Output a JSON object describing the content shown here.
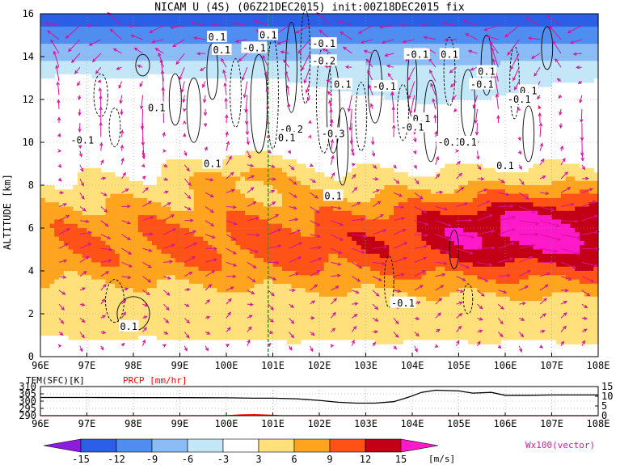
{
  "title": "NICAM U (4S) (06Z21DEC2015) init:00Z18DEC2015 fix",
  "chart_data": {
    "type": "heatmap",
    "title": "NICAM U (4S) (06Z21DEC2015) init:00Z18DEC2015 fix",
    "ylabel": "ALTITUDE [km]",
    "xlabel": "",
    "x_ticks": [
      "96E",
      "97E",
      "98E",
      "99E",
      "100E",
      "101E",
      "102E",
      "103E",
      "104E",
      "105E",
      "106E",
      "107E",
      "108E"
    ],
    "x_range": [
      96,
      108
    ],
    "y_ticks": [
      "0",
      "2",
      "4",
      "6",
      "8",
      "10",
      "12",
      "14",
      "16"
    ],
    "y_range": [
      0,
      16
    ],
    "reference_longitude": 100.9,
    "colorbar": {
      "unit": "[m/s]",
      "levels": [
        "-15",
        "-12",
        "-9",
        "-6",
        "-3",
        "3",
        "6",
        "9",
        "12",
        "15"
      ],
      "colors": [
        "#8d1ce0",
        "#2a5fe6",
        "#4f8ef0",
        "#8bbcf5",
        "#c3e7f7",
        "#ffffff",
        "#ffe07a",
        "#ffa41e",
        "#ff5216",
        "#c40016",
        "#ff19c8"
      ]
    },
    "vector_label": "Wx100(vector)",
    "contour_labels": [
      {
        "text": "0.1",
        "lon": 99.8,
        "alt": 14.9
      },
      {
        "text": "0.1",
        "lon": 100.9,
        "alt": 15.0
      },
      {
        "text": "-0.1",
        "lon": 100.6,
        "alt": 14.4
      },
      {
        "text": "0.1",
        "lon": 99.9,
        "alt": 14.3
      },
      {
        "text": "-0.1",
        "lon": 102.1,
        "alt": 14.6
      },
      {
        "text": "-0.2",
        "lon": 102.1,
        "alt": 13.8
      },
      {
        "text": "0.1",
        "lon": 102.5,
        "alt": 12.7
      },
      {
        "text": "-0.1",
        "lon": 103.4,
        "alt": 12.6
      },
      {
        "text": "-0.1",
        "lon": 104.1,
        "alt": 14.1
      },
      {
        "text": "0.1",
        "lon": 104.8,
        "alt": 14.1
      },
      {
        "text": "0.1",
        "lon": 105.6,
        "alt": 13.3
      },
      {
        "text": "-0.1",
        "lon": 105.5,
        "alt": 12.7
      },
      {
        "text": "0.1",
        "lon": 106.5,
        "alt": 12.4
      },
      {
        "text": "-0.1",
        "lon": 106.3,
        "alt": 12.0
      },
      {
        "text": "0.1",
        "lon": 98.5,
        "alt": 11.6
      },
      {
        "text": "0.1",
        "lon": 104.2,
        "alt": 11.1
      },
      {
        "text": "-0.1",
        "lon": 104.0,
        "alt": 10.7
      },
      {
        "text": "-0.2",
        "lon": 101.4,
        "alt": 10.6
      },
      {
        "text": "-0.3",
        "lon": 102.3,
        "alt": 10.4
      },
      {
        "text": "0.1",
        "lon": 101.3,
        "alt": 10.2
      },
      {
        "text": "-0.1",
        "lon": 96.9,
        "alt": 10.1
      },
      {
        "text": "-0.1",
        "lon": 104.8,
        "alt": 10.0
      },
      {
        "text": "0.1",
        "lon": 105.2,
        "alt": 10.0
      },
      {
        "text": "0.1",
        "lon": 99.7,
        "alt": 9.0
      },
      {
        "text": "0.1",
        "lon": 106.0,
        "alt": 8.9
      },
      {
        "text": "0.1",
        "lon": 102.3,
        "alt": 7.5
      },
      {
        "text": "-0.1",
        "lon": 103.8,
        "alt": 2.5
      },
      {
        "text": "0.1",
        "lon": 97.9,
        "alt": 1.4
      }
    ],
    "bottom_panel": {
      "tem_label": "TEM(SFC)[K]",
      "prcp_label": "PRCP [mm/hr]",
      "tem_ticks": [
        "310",
        "305",
        "300",
        "295",
        "290"
      ],
      "prcp_ticks": [
        "15",
        "10",
        "5",
        "0"
      ],
      "x_ticks": [
        "96E",
        "97E",
        "98E",
        "99E",
        "100E",
        "101E",
        "102E",
        "103E",
        "104E",
        "105E",
        "106E",
        "107E",
        "108E"
      ],
      "tem_series": {
        "lon": [
          96.0,
          97.0,
          98.0,
          99.0,
          100.0,
          100.6,
          101.0,
          101.5,
          102.0,
          102.4,
          102.8,
          103.2,
          103.6,
          103.9,
          104.2,
          104.5,
          105.0,
          105.3,
          105.7,
          106.0,
          106.5,
          107.0,
          107.5,
          108.0
        ],
        "values": [
          302.5,
          302.5,
          302.4,
          302.4,
          302.3,
          302.0,
          302.0,
          301.6,
          300.5,
          299.2,
          298.6,
          298.6,
          299.6,
          302.5,
          306.0,
          307.5,
          307.0,
          305.5,
          306.0,
          304.0,
          304.0,
          304.2,
          304.2,
          304.2
        ]
      },
      "prcp_series": {
        "lon": [
          96.0,
          100.0,
          100.3,
          100.6,
          100.9,
          101.2,
          102.0,
          108.0
        ],
        "values": [
          0,
          0,
          0.4,
          0.6,
          0.3,
          0,
          0,
          0
        ]
      }
    }
  }
}
